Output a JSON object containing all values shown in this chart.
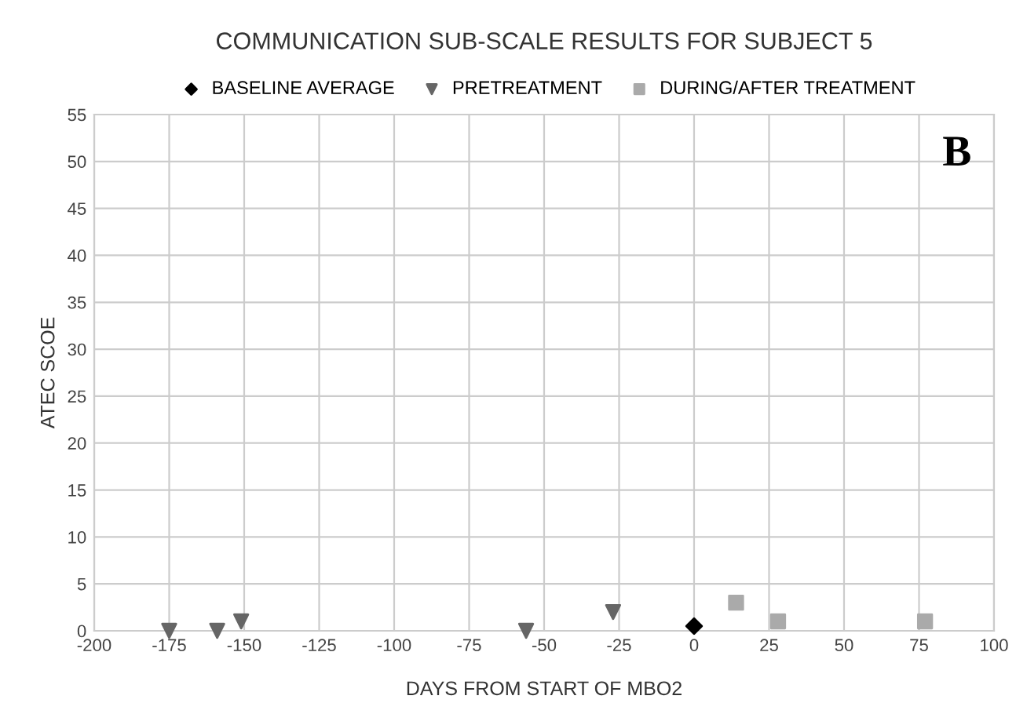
{
  "chart_data": {
    "type": "scatter",
    "title": "COMMUNICATION SUB-SCALE RESULTS FOR SUBJECT 5",
    "xlabel": "DAYS FROM START OF MBO2",
    "ylabel": "ATEC SCOE",
    "series": [
      {
        "name": "BASELINE AVERAGE",
        "color": "#000000",
        "marker": "diamond",
        "x": [
          0
        ],
        "values": [
          0.5
        ]
      },
      {
        "name": "PRETREATMENT",
        "color": "#666666",
        "marker": "triangle",
        "x": [
          -175,
          -159,
          -151,
          -56,
          -27
        ],
        "values": [
          0,
          0,
          1,
          0,
          2
        ]
      },
      {
        "name": "DURING/AFTER TREATMENT",
        "color": "#aaaaaa",
        "marker": "square",
        "x": [
          14,
          28,
          77
        ],
        "values": [
          3,
          1,
          1
        ]
      }
    ],
    "xlim": [
      -200,
      100
    ],
    "xticks": [
      -200,
      -175,
      -150,
      -125,
      -100,
      -75,
      -50,
      -25,
      0,
      25,
      50,
      75,
      100
    ],
    "ylim": [
      0,
      55
    ],
    "yticks": [
      0,
      5,
      10,
      15,
      20,
      25,
      30,
      35,
      40,
      45,
      50,
      55
    ],
    "grid": true,
    "legend": "top",
    "annotations": [
      "B"
    ]
  }
}
